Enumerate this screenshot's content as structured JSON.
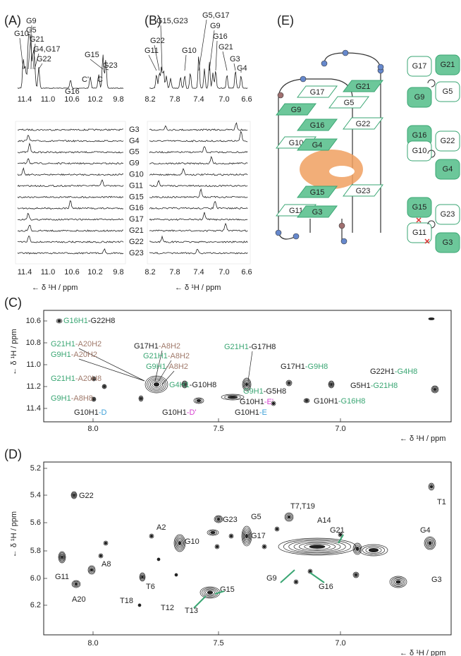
{
  "panel_a": {
    "label": "(A)",
    "peaks": [
      {
        "text": "G10",
        "color": "#222222"
      },
      {
        "text": "G9",
        "color": "#222222"
      },
      {
        "text": "G5",
        "color": "#222222"
      },
      {
        "text": "G21",
        "color": "#222222"
      },
      {
        "text": "G4,G17",
        "color": "#222222"
      },
      {
        "text": "G22",
        "color": "#222222"
      },
      {
        "text": "G16",
        "color": "#222222"
      },
      {
        "text": "C'",
        "color": "#d63fcf"
      },
      {
        "text": "C",
        "color": "#3ea0d8"
      },
      {
        "text": "G15",
        "color": "#222222"
      },
      {
        "text": "G23",
        "color": "#222222"
      }
    ],
    "ticks": [
      "11.4",
      "11.0",
      "10.6",
      "10.2",
      "9.8"
    ],
    "axis_label": "← δ ¹H / ppm"
  },
  "panel_b": {
    "label": "(B)",
    "peaks": [
      "G15,G23",
      "G22",
      "G11",
      "G10",
      "G5,G17",
      "G9",
      "G16",
      "G21",
      "G3",
      "G4"
    ],
    "ticks": [
      "8.2",
      "7.8",
      "7.4",
      "7.0",
      "6.6"
    ],
    "axis_label": "← δ ¹H / ppm"
  },
  "row_labels": [
    "G3",
    "G4",
    "G5",
    "G9",
    "G10",
    "G11",
    "G15",
    "G16",
    "G17",
    "G21",
    "G22",
    "G23"
  ],
  "panel_c": {
    "label": "(C)",
    "y_label": "← δ ¹H / ppm",
    "x_label": "← δ ¹H / ppm",
    "yticks": [
      "10.6",
      "10.8",
      "11.0",
      "11.2",
      "11.4"
    ],
    "xticks": [
      "8.0",
      "7.5",
      "7.0"
    ],
    "annotations": [
      {
        "parts": [
          "G16H1",
          "-G22H8"
        ],
        "colors": [
          "#3aa673",
          "#222222"
        ]
      },
      {
        "parts": [
          "G21H1",
          "-A20H2"
        ],
        "colors": [
          "#3aa673",
          "#a07a6b"
        ]
      },
      {
        "parts": [
          "G9H1",
          "-A20H2"
        ],
        "colors": [
          "#3aa673",
          "#a07a6b"
        ]
      },
      {
        "parts": [
          "G17H1",
          "-A8H2"
        ],
        "colors": [
          "#222222",
          "#a07a6b"
        ]
      },
      {
        "parts": [
          "G21H1",
          "-A8H2"
        ],
        "colors": [
          "#3aa673",
          "#a07a6b"
        ]
      },
      {
        "parts": [
          "G9H1",
          "-A8H2"
        ],
        "colors": [
          "#3aa673",
          "#a07a6b"
        ]
      },
      {
        "parts": [
          "G21H1",
          "-G17H8"
        ],
        "colors": [
          "#3aa673",
          "#222222"
        ]
      },
      {
        "parts": [
          "G17H1",
          "-G9H8"
        ],
        "colors": [
          "#222222",
          "#3aa673"
        ]
      },
      {
        "parts": [
          "G22H1",
          "-G4H8"
        ],
        "colors": [
          "#222222",
          "#3aa673"
        ]
      },
      {
        "parts": [
          "G21H1",
          "-A20H8"
        ],
        "colors": [
          "#3aa673",
          "#a07a6b"
        ]
      },
      {
        "parts": [
          "G4H1",
          "-G10H8"
        ],
        "colors": [
          "#3aa673",
          "#222222"
        ]
      },
      {
        "parts": [
          "G5H1",
          "-G21H8"
        ],
        "colors": [
          "#222222",
          "#3aa673"
        ]
      },
      {
        "parts": [
          "G9H1",
          "-A8H8"
        ],
        "colors": [
          "#3aa673",
          "#a07a6b"
        ]
      },
      {
        "parts": [
          "G9H1",
          "-G5H8"
        ],
        "colors": [
          "#3aa673",
          "#222222"
        ]
      },
      {
        "parts": [
          "G10H1",
          "-E'"
        ],
        "colors": [
          "#222222",
          "#d63fcf"
        ]
      },
      {
        "parts": [
          "G10H1",
          "-G16H8"
        ],
        "colors": [
          "#222222",
          "#3aa673"
        ]
      },
      {
        "parts": [
          "G10H1",
          "-D"
        ],
        "colors": [
          "#222222",
          "#3ea0d8"
        ]
      },
      {
        "parts": [
          "G10H1",
          "-D'"
        ],
        "colors": [
          "#222222",
          "#d63fcf"
        ]
      },
      {
        "parts": [
          "G10H1",
          "-E"
        ],
        "colors": [
          "#222222",
          "#3ea0d8"
        ]
      }
    ]
  },
  "panel_d": {
    "label": "(D)",
    "y_label": "← δ ¹H / ppm",
    "x_label": "← δ ¹H / ppm",
    "yticks": [
      "5.2",
      "5.4",
      "5.6",
      "5.8",
      "6.0",
      "6.2"
    ],
    "xticks": [
      "8.0",
      "7.5",
      "7.0"
    ],
    "labels": [
      {
        "text": "G22",
        "color": "#222222"
      },
      {
        "text": "G23",
        "color": "#222222"
      },
      {
        "text": "A2",
        "color": "#a07a6b"
      },
      {
        "text": "G10",
        "color": "#222222"
      },
      {
        "text": "G5",
        "color": "#222222"
      },
      {
        "text": "G17",
        "color": "#222222"
      },
      {
        "text": "T7,T19",
        "color": "#5b8bd0"
      },
      {
        "text": "A14",
        "color": "#a07a6b"
      },
      {
        "text": "G21",
        "color": "#3aa673"
      },
      {
        "text": "T1",
        "color": "#5b8bd0"
      },
      {
        "text": "G4",
        "color": "#3aa673"
      },
      {
        "text": "G11",
        "color": "#222222"
      },
      {
        "text": "A8",
        "color": "#a07a6b"
      },
      {
        "text": "A20",
        "color": "#a07a6b"
      },
      {
        "text": "T6",
        "color": "#5b8bd0"
      },
      {
        "text": "T18",
        "color": "#5b8bd0"
      },
      {
        "text": "T12",
        "color": "#5b8bd0"
      },
      {
        "text": "G15",
        "color": "#3aa673"
      },
      {
        "text": "T13",
        "color": "#5b8bd0"
      },
      {
        "text": "G9",
        "color": "#3aa673"
      },
      {
        "text": "G16",
        "color": "#3aa673"
      },
      {
        "text": "G3",
        "color": "#3aa673"
      }
    ]
  },
  "panel_e": {
    "label": "(E)",
    "stack": [
      "G17",
      "G21",
      "G9",
      "G5",
      "G16",
      "G22",
      "G10",
      "G4",
      "G15",
      "G23",
      "G11",
      "G3"
    ],
    "schematic": [
      "G17",
      "G21",
      "G9",
      "G5",
      "G16",
      "G22",
      "G10",
      "G4",
      "G15",
      "G23",
      "G11",
      "G3"
    ]
  }
}
